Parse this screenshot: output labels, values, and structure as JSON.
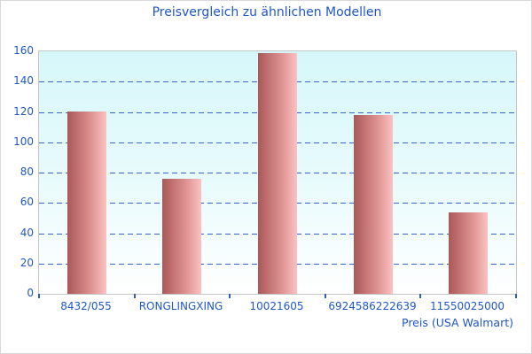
{
  "chart_data": {
    "type": "bar",
    "title": "Preisvergleich zu ähnlichen Modellen",
    "categories": [
      "8432/055",
      "RONGLINGXING",
      "10021605",
      "6924586222639",
      "11550025000"
    ],
    "values": [
      120,
      76,
      159,
      118,
      54
    ],
    "xlabel": "Preis (USA Walmart)",
    "ylabel": "",
    "ylim": [
      0,
      160
    ],
    "ytick_step": 20,
    "grid": "horizontal-dashed",
    "legend": "none",
    "colors": {
      "text_blue": "#2057c8",
      "gridline_blue": "#3565c8",
      "bar_gradient_start": "#aa5858",
      "bar_gradient_end": "#fbc2c2",
      "plot_bg_top": "#d6f7fa",
      "plot_bg_bottom": "#ffffff",
      "plot_border": "#c6c6c6"
    }
  }
}
